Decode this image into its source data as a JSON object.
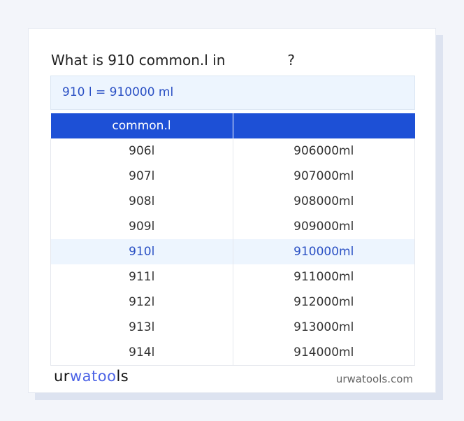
{
  "title": "What is 910 common.l in              ?",
  "result": "910 l = 910000 ml",
  "table": {
    "headers": [
      "common.l",
      ""
    ],
    "rows": [
      [
        "906l",
        "906000ml"
      ],
      [
        "907l",
        "907000ml"
      ],
      [
        "908l",
        "908000ml"
      ],
      [
        "909l",
        "909000ml"
      ],
      [
        "910l",
        "910000ml"
      ],
      [
        "911l",
        "911000ml"
      ],
      [
        "912l",
        "912000ml"
      ],
      [
        "913l",
        "913000ml"
      ],
      [
        "914l",
        "914000ml"
      ]
    ],
    "highlighted_row": 4
  },
  "footer": {
    "logo": "urwatools",
    "logo_parts": [
      "ur",
      "wa",
      "too",
      "ls"
    ],
    "site": "urwatools.com"
  },
  "colors": {
    "accent": "#1d50d6",
    "highlight_bg": "#edf5fe",
    "highlight_text": "#2b51c4"
  }
}
